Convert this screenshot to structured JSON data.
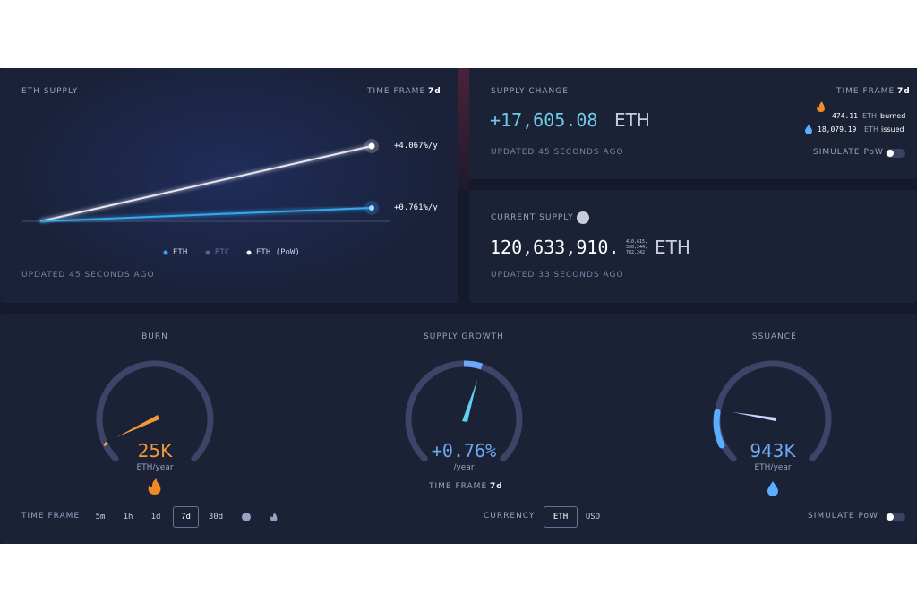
{
  "eth_supply": {
    "title": "ETH SUPPLY",
    "time_frame_label": "TIME FRAME",
    "time_frame": "7d",
    "pow_rate": "+4.067%/y",
    "rate": "+0.761%/y",
    "legend": [
      "ETH",
      "BTC",
      "ETH (PoW)"
    ],
    "updated": "UPDATED 45 SECONDS AGO"
  },
  "supply_change": {
    "title": "SUPPLY CHANGE",
    "time_frame_label": "TIME FRAME",
    "time_frame": "7d",
    "value": "+17,605.08",
    "unit": "ETH",
    "burned_value": "474.11",
    "burned_unit": "ETH",
    "burned_label": "burned",
    "issued_value": "18,079.19",
    "issued_unit": "ETH",
    "issued_label": "issued",
    "updated": "UPDATED 45 SECONDS AGO",
    "simulate": "SIMULATE PoW"
  },
  "current_supply": {
    "title": "CURRENT SUPPLY",
    "value": "120,633,910.",
    "decimals": [
      "410,615,",
      "330,244,",
      "782,242"
    ],
    "unit": "ETH",
    "updated": "UPDATED 33 SECONDS AGO"
  },
  "gauges": [
    {
      "title": "BURN",
      "value": "25K",
      "unit": "ETH/year"
    },
    {
      "title": "SUPPLY GROWTH",
      "value": "+0.76%",
      "unit": "/year",
      "time_frame_label": "TIME FRAME",
      "time_frame": "7d"
    },
    {
      "title": "ISSUANCE",
      "value": "943K",
      "unit": "ETH/year"
    }
  ],
  "controls": {
    "time_frame_label": "TIME FRAME",
    "time_frames": [
      "5m",
      "1h",
      "1d",
      "7d",
      "30d"
    ],
    "currency_label": "CURRENCY",
    "currencies": [
      "ETH",
      "USD"
    ],
    "simulate": "SIMULATE PoW"
  }
}
